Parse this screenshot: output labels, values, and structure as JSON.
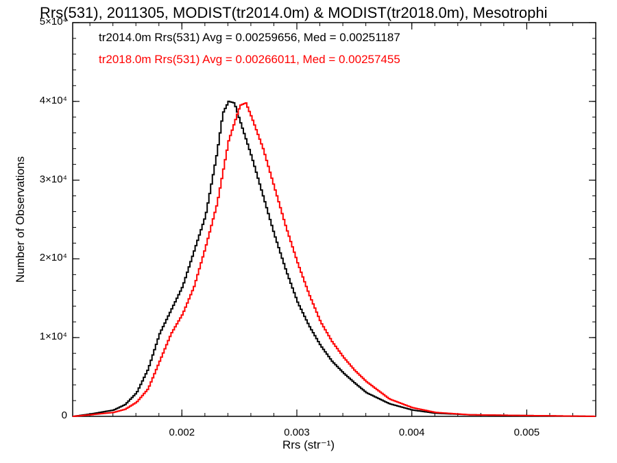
{
  "chart_data": {
    "type": "line",
    "title": "Rrs(531), 2011305, MODIST(tr2014.0m) & MODIST(tr2018.0m), Mesotrophi",
    "xlabel": "Rrs (str⁻¹)",
    "ylabel": "Number of Observations",
    "xlim": [
      0.00105,
      0.0056
    ],
    "ylim": [
      0,
      50000
    ],
    "xticks": [
      {
        "value": 0.002,
        "label": "0.002"
      },
      {
        "value": 0.003,
        "label": "0.003"
      },
      {
        "value": 0.004,
        "label": "0.004"
      },
      {
        "value": 0.005,
        "label": "0.005"
      }
    ],
    "yticks": [
      {
        "value": 0,
        "label": "0"
      },
      {
        "value": 10000,
        "label": "1×10⁴"
      },
      {
        "value": 20000,
        "label": "2×10⁴"
      },
      {
        "value": 30000,
        "label": "3×10⁴"
      },
      {
        "value": 40000,
        "label": "4×10⁴"
      },
      {
        "value": 50000,
        "label": "5×10⁴"
      }
    ],
    "annotations": [
      {
        "text": "tr2014.0m Rrs(531) Avg = 0.00259656, Med = 0.00251187",
        "color": "#000000"
      },
      {
        "text": "tr2018.0m Rrs(531) Avg = 0.00266011, Med = 0.00257455",
        "color": "#ff0000"
      }
    ],
    "series": [
      {
        "color": "#000000",
        "x": [
          0.00105,
          0.0012,
          0.0014,
          0.0015,
          0.0016,
          0.0017,
          0.0018,
          0.0019,
          0.002,
          0.0021,
          0.0022,
          0.0023,
          0.00235,
          0.0024,
          0.00245,
          0.0025,
          0.0026,
          0.0027,
          0.0028,
          0.0029,
          0.003,
          0.0031,
          0.0032,
          0.0033,
          0.0034,
          0.0035,
          0.0036,
          0.0038,
          0.004,
          0.0042,
          0.0045,
          0.005,
          0.0056
        ],
        "values": [
          0,
          300,
          800,
          1500,
          3000,
          6000,
          10500,
          13500,
          16500,
          21000,
          25500,
          33500,
          38500,
          40000,
          39800,
          37500,
          33000,
          28000,
          23000,
          18500,
          14500,
          11500,
          9000,
          7000,
          5500,
          4200,
          3000,
          1600,
          800,
          400,
          200,
          100,
          0
        ]
      },
      {
        "color": "#ff0000",
        "x": [
          0.00105,
          0.0012,
          0.0014,
          0.0015,
          0.0016,
          0.0017,
          0.0018,
          0.0019,
          0.002,
          0.0021,
          0.0022,
          0.0023,
          0.0024,
          0.0025,
          0.00255,
          0.0026,
          0.0027,
          0.0028,
          0.0029,
          0.003,
          0.0031,
          0.0032,
          0.0033,
          0.0034,
          0.0035,
          0.0036,
          0.0038,
          0.004,
          0.0042,
          0.0045,
          0.005,
          0.0056
        ],
        "values": [
          0,
          200,
          500,
          900,
          1800,
          3500,
          7000,
          10500,
          13000,
          16500,
          21500,
          27000,
          35000,
          39500,
          39800,
          38000,
          34000,
          29000,
          24000,
          19500,
          15500,
          12000,
          9500,
          7500,
          5800,
          4400,
          2200,
          1100,
          500,
          200,
          100,
          0
        ]
      }
    ]
  }
}
